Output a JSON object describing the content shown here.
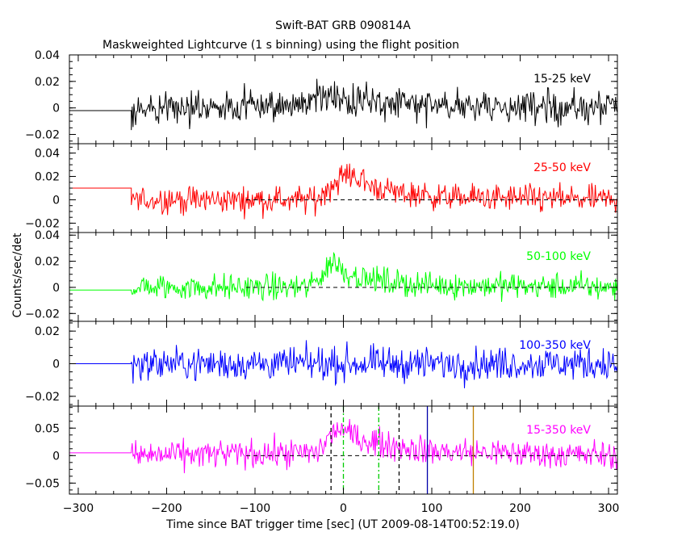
{
  "chart_data": {
    "type": "line",
    "title": "Swift-BAT GRB 090814A",
    "subtitle": "Maskweighted Lightcurve (1 s binning) using the flight position",
    "xlabel": "Time since BAT trigger time [sec] (UT 2009-08-14T00:52:19.0)",
    "ylabel": "Counts/sec/det",
    "xlim": [
      -310,
      310
    ],
    "x_ticks": [
      -300,
      -200,
      -100,
      0,
      100,
      200,
      300
    ],
    "data_start": -240,
    "grid": false,
    "panels": [
      {
        "name": "15-25 keV",
        "color": "#000000",
        "ylim": [
          -0.027,
          0.04
        ],
        "y_ticks": [
          -0.02,
          0,
          0.02,
          0.04
        ],
        "y_tick_labels": [
          "−0.02",
          "0",
          "0.02",
          "0.04"
        ],
        "pre_level": -0.002,
        "noise": 0.009,
        "profile": [
          [
            -240,
            0.0
          ],
          [
            -100,
            0.001
          ],
          [
            -30,
            0.004
          ],
          [
            0,
            0.006
          ],
          [
            40,
            0.004
          ],
          [
            120,
            0.001
          ],
          [
            310,
            0.0
          ]
        ],
        "zero_dashed": false
      },
      {
        "name": "25-50 keV",
        "color": "#ff0000",
        "ylim": [
          -0.028,
          0.048
        ],
        "y_ticks": [
          -0.02,
          0,
          0.02,
          0.04
        ],
        "y_tick_labels": [
          "−0.02",
          "0",
          "0.02",
          "0.04"
        ],
        "pre_level": 0.01,
        "noise": 0.008,
        "profile": [
          [
            -240,
            0.0
          ],
          [
            -30,
            0.0
          ],
          [
            -15,
            0.012
          ],
          [
            0,
            0.02
          ],
          [
            10,
            0.022
          ],
          [
            30,
            0.012
          ],
          [
            60,
            0.006
          ],
          [
            120,
            0.002
          ],
          [
            310,
            0.0
          ]
        ],
        "zero_dashed": true
      },
      {
        "name": "50-100 keV",
        "color": "#00ff00",
        "ylim": [
          -0.026,
          0.042
        ],
        "y_ticks": [
          -0.02,
          0,
          0.02,
          0.04
        ],
        "y_tick_labels": [
          "−0.02",
          "0",
          "0.02",
          "0.04"
        ],
        "pre_level": -0.002,
        "noise": 0.007,
        "profile": [
          [
            -240,
            0.0
          ],
          [
            -40,
            0.0
          ],
          [
            -20,
            0.012
          ],
          [
            -12,
            0.022
          ],
          [
            0,
            0.012
          ],
          [
            30,
            0.006
          ],
          [
            80,
            0.002
          ],
          [
            310,
            0.0
          ]
        ],
        "zero_dashed": true
      },
      {
        "name": "100-350 keV",
        "color": "#0000ff",
        "ylim": [
          -0.026,
          0.026
        ],
        "y_ticks": [
          -0.02,
          0,
          0.02
        ],
        "y_tick_labels": [
          "−0.02",
          "0",
          "0.02"
        ],
        "pre_level": 0.0,
        "noise": 0.007,
        "profile": [
          [
            -240,
            0.0
          ],
          [
            310,
            0.0
          ]
        ],
        "zero_dashed": false
      },
      {
        "name": "15-350 keV",
        "color": "#ff00ff",
        "ylim": [
          -0.07,
          0.09
        ],
        "y_ticks": [
          -0.05,
          0,
          0.05
        ],
        "y_tick_labels": [
          "−0.05",
          "0",
          "0.05"
        ],
        "pre_level": 0.005,
        "noise": 0.018,
        "profile": [
          [
            -240,
            0.0
          ],
          [
            -30,
            0.005
          ],
          [
            -15,
            0.035
          ],
          [
            -5,
            0.05
          ],
          [
            5,
            0.04
          ],
          [
            20,
            0.03
          ],
          [
            50,
            0.02
          ],
          [
            100,
            0.008
          ],
          [
            310,
            0.0
          ]
        ],
        "zero_dashed": true,
        "markers": [
          {
            "x": -14,
            "color": "#000000",
            "style": "dash"
          },
          {
            "x": 0,
            "color": "#00cc00",
            "style": "dashdot"
          },
          {
            "x": 40,
            "color": "#00cc00",
            "style": "dashdot"
          },
          {
            "x": 63,
            "color": "#000000",
            "style": "dash"
          },
          {
            "x": 95,
            "color": "#0000aa",
            "style": "solid"
          },
          {
            "x": 147,
            "color": "#c08000",
            "style": "solid"
          }
        ]
      }
    ]
  }
}
